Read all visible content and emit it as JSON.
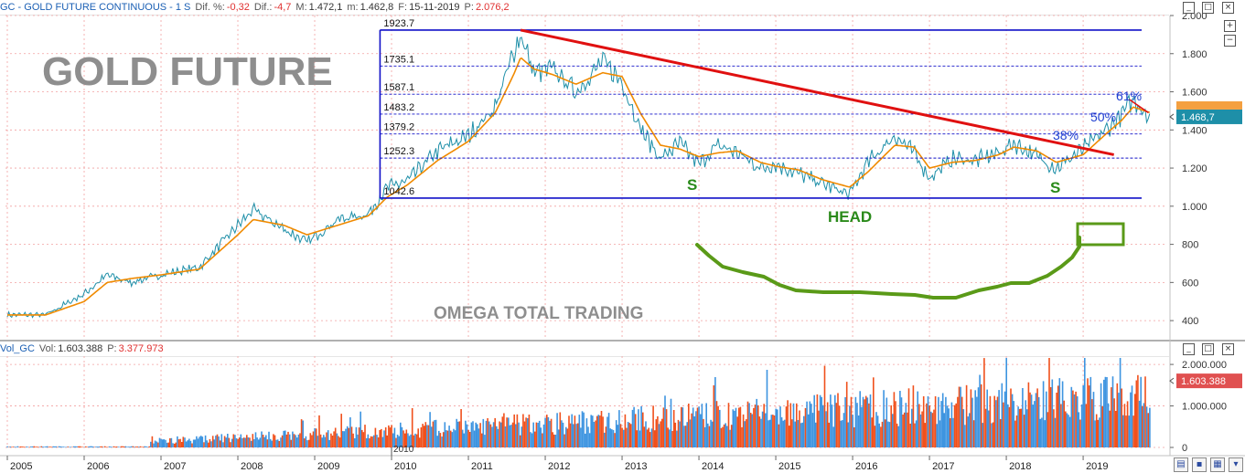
{
  "header": {
    "symbol": "GC - GOLD FUTURE CONTINUOUS - 1 S",
    "dif_pct_label": "Dif. %:",
    "dif_pct_value": "-0,32",
    "dif_label": "Dif.:",
    "dif_value": "-4,7",
    "max_label": "M:",
    "max_value": "1.472,1",
    "min_label": "m:",
    "min_value": "1.462,8",
    "date_label": "F:",
    "date_value": "15-11-2019",
    "price_label": "P:",
    "price_value": "2.076,2"
  },
  "volume_header": {
    "name": "Vol_GC",
    "vol_label": "Vol:",
    "vol_value": "1.603.388",
    "p_label": "P:",
    "p_value": "3.377.973"
  },
  "watermarks": {
    "title": "GOLD FUTURE",
    "footer": "OMEGA TOTAL TRADING"
  },
  "annotations": {
    "left_shoulder": "S",
    "right_shoulder": "S",
    "head": "HEAD",
    "fib_38": "38%",
    "fib_50": "50%",
    "fib_61": "61%"
  },
  "price_badge": "1.468,7",
  "volume_badge": "1.603.388",
  "colors": {
    "price_line": "#1e8fa8",
    "moving_average": "#f08a00",
    "trendline": "#e01010",
    "frame": "#1010c8",
    "neckline_drawing": "#5a9a18",
    "volume_up": "#3d94e0",
    "volume_down": "#f0501c",
    "badge": "#1e8fa8",
    "volume_badge": "#e05050"
  },
  "chart_data": [
    {
      "type": "line",
      "x": [
        2005.0,
        2005.5,
        2006.0,
        2006.3,
        2006.6,
        2007.0,
        2007.5,
        2008.0,
        2008.2,
        2008.6,
        2008.9,
        2009.3,
        2009.7,
        2009.95,
        2010.2,
        2010.6,
        2011.0,
        2011.35,
        2011.6,
        2011.68,
        2011.85,
        2012.1,
        2012.4,
        2012.75,
        2013.0,
        2013.25,
        2013.5,
        2013.75,
        2014.0,
        2014.25,
        2014.5,
        2014.8,
        2015.0,
        2015.3,
        2015.6,
        2015.96,
        2016.2,
        2016.55,
        2016.8,
        2017.0,
        2017.3,
        2017.6,
        2017.9,
        2018.1,
        2018.4,
        2018.65,
        2019.0,
        2019.3,
        2019.5,
        2019.65,
        2019.88
      ],
      "y": [
        430,
        430,
        540,
        640,
        600,
        640,
        680,
        900,
        980,
        880,
        810,
        930,
        960,
        1100,
        1130,
        1290,
        1370,
        1520,
        1820,
        1900,
        1700,
        1720,
        1600,
        1760,
        1650,
        1400,
        1250,
        1330,
        1220,
        1320,
        1280,
        1200,
        1220,
        1170,
        1120,
        1060,
        1230,
        1370,
        1280,
        1150,
        1250,
        1240,
        1280,
        1330,
        1260,
        1200,
        1300,
        1400,
        1480,
        1560,
        1468
      ],
      "ma_y": [
        430,
        430,
        500,
        600,
        620,
        640,
        670,
        850,
        930,
        900,
        850,
        900,
        950,
        1050,
        1110,
        1240,
        1340,
        1490,
        1700,
        1780,
        1720,
        1690,
        1640,
        1700,
        1680,
        1480,
        1320,
        1300,
        1260,
        1280,
        1290,
        1230,
        1210,
        1190,
        1140,
        1100,
        1180,
        1320,
        1310,
        1200,
        1230,
        1240,
        1270,
        1310,
        1290,
        1230,
        1270,
        1380,
        1450,
        1520,
        1490
      ],
      "xlabel": "",
      "ylabel": "",
      "ylim": [
        300,
        2000
      ],
      "y_ticks": [
        "400",
        "600",
        "800",
        "1.000",
        "1.200",
        "1.400",
        "1.600",
        "1.800",
        "2.000"
      ],
      "x_ticks": [
        "2005",
        "2006",
        "2007",
        "2008",
        "2009",
        "2010",
        "2011",
        "2012",
        "2013",
        "2014",
        "2015",
        "2016",
        "2017",
        "2018",
        "2019"
      ],
      "levels": [
        "1923.7",
        "1735.1",
        "1587.1",
        "1483.2",
        "1379.2",
        "1252.3",
        "1042.6"
      ],
      "trendline": {
        "x": [
          2011.68,
          2019.4
        ],
        "y": [
          1923.7,
          1270
        ]
      },
      "grid": true,
      "axis_side": "right"
    },
    {
      "type": "bar",
      "ylim": [
        0,
        2200000
      ],
      "y_ticks": [
        "0",
        "1.000.000",
        "2.000.000"
      ],
      "axis_note": "2010",
      "grid": true
    }
  ]
}
